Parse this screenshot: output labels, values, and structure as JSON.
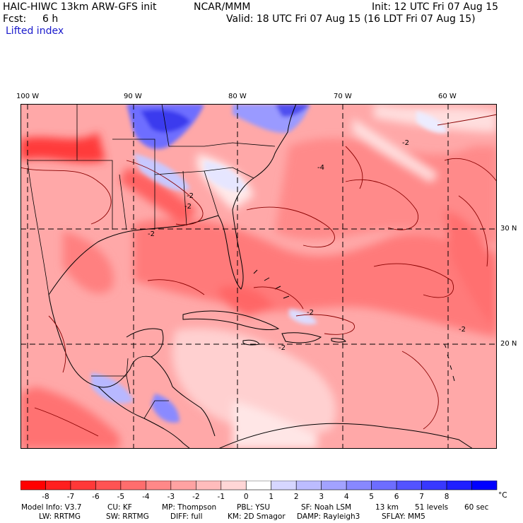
{
  "header": {
    "model": "HAIC-HIWC 13km ARW-GFS init",
    "org": "NCAR/MMM",
    "init": "Init: 12 UTC Fri 07 Aug 15",
    "fcst_label": "Fcst:",
    "fcst_value": "6 h",
    "valid": "Valid: 18 UTC Fri 07 Aug 15 (16 LDT Fri 07 Aug 15)",
    "field": "Lifted index"
  },
  "map": {
    "lon_labels": [
      "100 W",
      "90 W",
      "80 W",
      "70 W",
      "60 W"
    ],
    "lat_labels": [
      "30 N",
      "20 N"
    ],
    "contour_labels": [
      "-2",
      "-2",
      "-2",
      "-2",
      "-2",
      "-2",
      "-2",
      "-4"
    ]
  },
  "colorbar": {
    "labels": [
      "-8",
      "-7",
      "-6",
      "-5",
      "-4",
      "-3",
      "-2",
      "-1",
      "0",
      "1",
      "2",
      "3",
      "4",
      "5",
      "6",
      "7",
      "8"
    ],
    "unit": "°C",
    "colors": [
      "#ff0000",
      "#ff1f1f",
      "#ff3838",
      "#ff5353",
      "#ff6d6d",
      "#ff8888",
      "#ffa2a2",
      "#ffbcbc",
      "#ffd6d6",
      "#ffffff",
      "#d6d6ff",
      "#bcbcff",
      "#a2a2ff",
      "#8888ff",
      "#6d6dff",
      "#5353ff",
      "#3838ff",
      "#1f1fff",
      "#0000ff"
    ]
  },
  "footer": {
    "line1": [
      "Model Info: V3.7",
      "CU: KF",
      "MP: Thompson",
      "PBL: YSU",
      "SF: Noah LSM",
      "13 km",
      "51 levels",
      "60 sec"
    ],
    "line2": [
      "LW: RRTMG",
      "SW: RRTMG",
      "DIFF: full",
      "KM: 2D Smagor",
      "DAMP: Rayleigh3",
      "SFLAY: MM5"
    ]
  }
}
